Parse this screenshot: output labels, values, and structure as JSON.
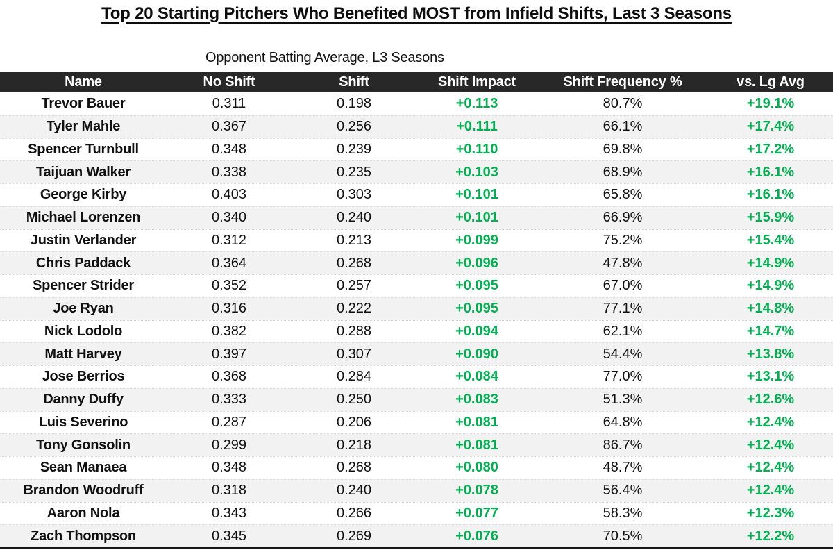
{
  "chart_data": {
    "type": "table",
    "title": "Top 20 Starting Pitchers Who Benefited MOST from Infield Shifts, Last 3 Seasons",
    "subtitle": "Opponent Batting Average, L3 Seasons",
    "columns": [
      "Name",
      "No Shift",
      "Shift",
      "Shift Impact",
      "Shift Frequency %",
      "vs. Lg Avg"
    ],
    "rows": [
      [
        "Trevor Bauer",
        "0.311",
        "0.198",
        "+0.113",
        "80.7%",
        "+19.1%"
      ],
      [
        "Tyler Mahle",
        "0.367",
        "0.256",
        "+0.111",
        "66.1%",
        "+17.4%"
      ],
      [
        "Spencer Turnbull",
        "0.348",
        "0.239",
        "+0.110",
        "69.8%",
        "+17.2%"
      ],
      [
        "Taijuan Walker",
        "0.338",
        "0.235",
        "+0.103",
        "68.9%",
        "+16.1%"
      ],
      [
        "George Kirby",
        "0.403",
        "0.303",
        "+0.101",
        "65.8%",
        "+16.1%"
      ],
      [
        "Michael Lorenzen",
        "0.340",
        "0.240",
        "+0.101",
        "66.9%",
        "+15.9%"
      ],
      [
        "Justin Verlander",
        "0.312",
        "0.213",
        "+0.099",
        "75.2%",
        "+15.4%"
      ],
      [
        "Chris Paddack",
        "0.364",
        "0.268",
        "+0.096",
        "47.8%",
        "+14.9%"
      ],
      [
        "Spencer Strider",
        "0.352",
        "0.257",
        "+0.095",
        "67.0%",
        "+14.9%"
      ],
      [
        "Joe Ryan",
        "0.316",
        "0.222",
        "+0.095",
        "77.1%",
        "+14.8%"
      ],
      [
        "Nick Lodolo",
        "0.382",
        "0.288",
        "+0.094",
        "62.1%",
        "+14.7%"
      ],
      [
        "Matt Harvey",
        "0.397",
        "0.307",
        "+0.090",
        "54.4%",
        "+13.8%"
      ],
      [
        "Jose Berrios",
        "0.368",
        "0.284",
        "+0.084",
        "77.0%",
        "+13.1%"
      ],
      [
        "Danny Duffy",
        "0.333",
        "0.250",
        "+0.083",
        "51.3%",
        "+12.6%"
      ],
      [
        "Luis Severino",
        "0.287",
        "0.206",
        "+0.081",
        "64.8%",
        "+12.4%"
      ],
      [
        "Tony Gonsolin",
        "0.299",
        "0.218",
        "+0.081",
        "86.7%",
        "+12.4%"
      ],
      [
        "Sean Manaea",
        "0.348",
        "0.268",
        "+0.080",
        "48.7%",
        "+12.4%"
      ],
      [
        "Brandon Woodruff",
        "0.318",
        "0.240",
        "+0.078",
        "56.4%",
        "+12.4%"
      ],
      [
        "Aaron Nola",
        "0.343",
        "0.266",
        "+0.077",
        "58.3%",
        "+12.3%"
      ],
      [
        "Zach Thompson",
        "0.345",
        "0.269",
        "+0.076",
        "70.5%",
        "+12.2%"
      ]
    ]
  },
  "colors": {
    "header_bg": "#282828",
    "header_text": "#ffffff",
    "stripe": "#f2f2f2",
    "positive_green": "#00b050",
    "text": "#111111"
  }
}
